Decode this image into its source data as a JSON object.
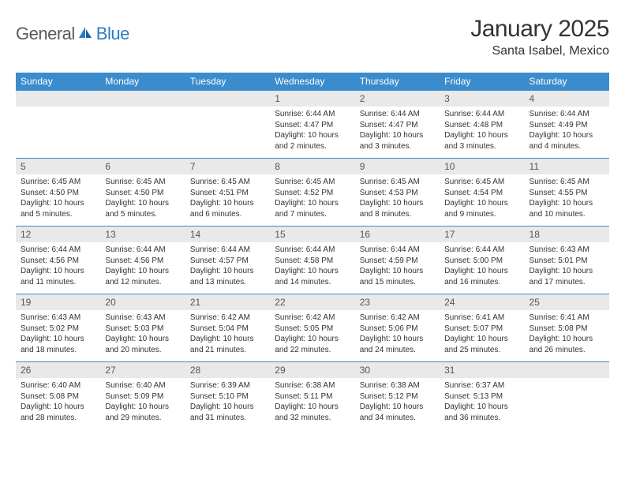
{
  "brand": {
    "name1": "General",
    "name2": "Blue"
  },
  "title": "January 2025",
  "location": "Santa Isabel, Mexico",
  "colors": {
    "header_bg": "#3b8ccc",
    "header_text": "#ffffff",
    "daynum_bg": "#e9e9e9",
    "rule": "#3b8ccc",
    "text": "#333333",
    "logo_gray": "#5a5a5a",
    "logo_blue": "#2b7cc4"
  },
  "weekdays": [
    "Sunday",
    "Monday",
    "Tuesday",
    "Wednesday",
    "Thursday",
    "Friday",
    "Saturday"
  ],
  "weeks": [
    [
      null,
      null,
      null,
      {
        "n": "1",
        "sr": "Sunrise: 6:44 AM",
        "ss": "Sunset: 4:47 PM",
        "d1": "Daylight: 10 hours",
        "d2": "and 2 minutes."
      },
      {
        "n": "2",
        "sr": "Sunrise: 6:44 AM",
        "ss": "Sunset: 4:47 PM",
        "d1": "Daylight: 10 hours",
        "d2": "and 3 minutes."
      },
      {
        "n": "3",
        "sr": "Sunrise: 6:44 AM",
        "ss": "Sunset: 4:48 PM",
        "d1": "Daylight: 10 hours",
        "d2": "and 3 minutes."
      },
      {
        "n": "4",
        "sr": "Sunrise: 6:44 AM",
        "ss": "Sunset: 4:49 PM",
        "d1": "Daylight: 10 hours",
        "d2": "and 4 minutes."
      }
    ],
    [
      {
        "n": "5",
        "sr": "Sunrise: 6:45 AM",
        "ss": "Sunset: 4:50 PM",
        "d1": "Daylight: 10 hours",
        "d2": "and 5 minutes."
      },
      {
        "n": "6",
        "sr": "Sunrise: 6:45 AM",
        "ss": "Sunset: 4:50 PM",
        "d1": "Daylight: 10 hours",
        "d2": "and 5 minutes."
      },
      {
        "n": "7",
        "sr": "Sunrise: 6:45 AM",
        "ss": "Sunset: 4:51 PM",
        "d1": "Daylight: 10 hours",
        "d2": "and 6 minutes."
      },
      {
        "n": "8",
        "sr": "Sunrise: 6:45 AM",
        "ss": "Sunset: 4:52 PM",
        "d1": "Daylight: 10 hours",
        "d2": "and 7 minutes."
      },
      {
        "n": "9",
        "sr": "Sunrise: 6:45 AM",
        "ss": "Sunset: 4:53 PM",
        "d1": "Daylight: 10 hours",
        "d2": "and 8 minutes."
      },
      {
        "n": "10",
        "sr": "Sunrise: 6:45 AM",
        "ss": "Sunset: 4:54 PM",
        "d1": "Daylight: 10 hours",
        "d2": "and 9 minutes."
      },
      {
        "n": "11",
        "sr": "Sunrise: 6:45 AM",
        "ss": "Sunset: 4:55 PM",
        "d1": "Daylight: 10 hours",
        "d2": "and 10 minutes."
      }
    ],
    [
      {
        "n": "12",
        "sr": "Sunrise: 6:44 AM",
        "ss": "Sunset: 4:56 PM",
        "d1": "Daylight: 10 hours",
        "d2": "and 11 minutes."
      },
      {
        "n": "13",
        "sr": "Sunrise: 6:44 AM",
        "ss": "Sunset: 4:56 PM",
        "d1": "Daylight: 10 hours",
        "d2": "and 12 minutes."
      },
      {
        "n": "14",
        "sr": "Sunrise: 6:44 AM",
        "ss": "Sunset: 4:57 PM",
        "d1": "Daylight: 10 hours",
        "d2": "and 13 minutes."
      },
      {
        "n": "15",
        "sr": "Sunrise: 6:44 AM",
        "ss": "Sunset: 4:58 PM",
        "d1": "Daylight: 10 hours",
        "d2": "and 14 minutes."
      },
      {
        "n": "16",
        "sr": "Sunrise: 6:44 AM",
        "ss": "Sunset: 4:59 PM",
        "d1": "Daylight: 10 hours",
        "d2": "and 15 minutes."
      },
      {
        "n": "17",
        "sr": "Sunrise: 6:44 AM",
        "ss": "Sunset: 5:00 PM",
        "d1": "Daylight: 10 hours",
        "d2": "and 16 minutes."
      },
      {
        "n": "18",
        "sr": "Sunrise: 6:43 AM",
        "ss": "Sunset: 5:01 PM",
        "d1": "Daylight: 10 hours",
        "d2": "and 17 minutes."
      }
    ],
    [
      {
        "n": "19",
        "sr": "Sunrise: 6:43 AM",
        "ss": "Sunset: 5:02 PM",
        "d1": "Daylight: 10 hours",
        "d2": "and 18 minutes."
      },
      {
        "n": "20",
        "sr": "Sunrise: 6:43 AM",
        "ss": "Sunset: 5:03 PM",
        "d1": "Daylight: 10 hours",
        "d2": "and 20 minutes."
      },
      {
        "n": "21",
        "sr": "Sunrise: 6:42 AM",
        "ss": "Sunset: 5:04 PM",
        "d1": "Daylight: 10 hours",
        "d2": "and 21 minutes."
      },
      {
        "n": "22",
        "sr": "Sunrise: 6:42 AM",
        "ss": "Sunset: 5:05 PM",
        "d1": "Daylight: 10 hours",
        "d2": "and 22 minutes."
      },
      {
        "n": "23",
        "sr": "Sunrise: 6:42 AM",
        "ss": "Sunset: 5:06 PM",
        "d1": "Daylight: 10 hours",
        "d2": "and 24 minutes."
      },
      {
        "n": "24",
        "sr": "Sunrise: 6:41 AM",
        "ss": "Sunset: 5:07 PM",
        "d1": "Daylight: 10 hours",
        "d2": "and 25 minutes."
      },
      {
        "n": "25",
        "sr": "Sunrise: 6:41 AM",
        "ss": "Sunset: 5:08 PM",
        "d1": "Daylight: 10 hours",
        "d2": "and 26 minutes."
      }
    ],
    [
      {
        "n": "26",
        "sr": "Sunrise: 6:40 AM",
        "ss": "Sunset: 5:08 PM",
        "d1": "Daylight: 10 hours",
        "d2": "and 28 minutes."
      },
      {
        "n": "27",
        "sr": "Sunrise: 6:40 AM",
        "ss": "Sunset: 5:09 PM",
        "d1": "Daylight: 10 hours",
        "d2": "and 29 minutes."
      },
      {
        "n": "28",
        "sr": "Sunrise: 6:39 AM",
        "ss": "Sunset: 5:10 PM",
        "d1": "Daylight: 10 hours",
        "d2": "and 31 minutes."
      },
      {
        "n": "29",
        "sr": "Sunrise: 6:38 AM",
        "ss": "Sunset: 5:11 PM",
        "d1": "Daylight: 10 hours",
        "d2": "and 32 minutes."
      },
      {
        "n": "30",
        "sr": "Sunrise: 6:38 AM",
        "ss": "Sunset: 5:12 PM",
        "d1": "Daylight: 10 hours",
        "d2": "and 34 minutes."
      },
      {
        "n": "31",
        "sr": "Sunrise: 6:37 AM",
        "ss": "Sunset: 5:13 PM",
        "d1": "Daylight: 10 hours",
        "d2": "and 36 minutes."
      },
      null
    ]
  ]
}
